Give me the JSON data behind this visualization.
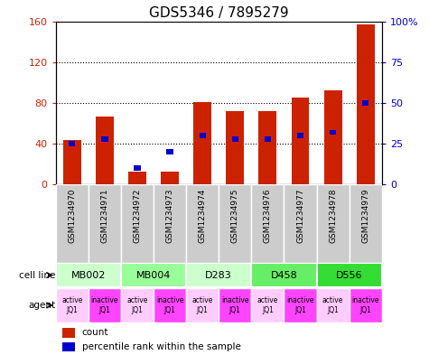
{
  "title": "GDS5346 / 7895279",
  "samples": [
    "GSM1234970",
    "GSM1234971",
    "GSM1234972",
    "GSM1234973",
    "GSM1234974",
    "GSM1234975",
    "GSM1234976",
    "GSM1234977",
    "GSM1234978",
    "GSM1234979"
  ],
  "count_values": [
    44,
    67,
    13,
    13,
    81,
    72,
    72,
    85,
    92,
    157
  ],
  "percentile_values": [
    25,
    28,
    10,
    20,
    30,
    28,
    28,
    30,
    32,
    50
  ],
  "ylim_left": [
    0,
    160
  ],
  "ylim_right": [
    0,
    100
  ],
  "yticks_left": [
    0,
    40,
    80,
    120,
    160
  ],
  "yticks_right": [
    0,
    25,
    50,
    75,
    100
  ],
  "ytick_labels_left": [
    "0",
    "40",
    "80",
    "120",
    "160"
  ],
  "ytick_labels_right": [
    "0",
    "25",
    "50",
    "75",
    "100%"
  ],
  "cell_lines": [
    {
      "label": "MB002",
      "cols": [
        0,
        1
      ],
      "color": "#ccffcc"
    },
    {
      "label": "MB004",
      "cols": [
        2,
        3
      ],
      "color": "#99ff99"
    },
    {
      "label": "D283",
      "cols": [
        4,
        5
      ],
      "color": "#ccffcc"
    },
    {
      "label": "D458",
      "cols": [
        6,
        7
      ],
      "color": "#66ee66"
    },
    {
      "label": "D556",
      "cols": [
        8,
        9
      ],
      "color": "#33dd33"
    }
  ],
  "agents": [
    "active\nJQ1",
    "inactive\nJQ1",
    "active\nJQ1",
    "inactive\nJQ1",
    "active\nJQ1",
    "inactive\nJQ1",
    "active\nJQ1",
    "inactive\nJQ1",
    "active\nJQ1",
    "inactive\nJQ1"
  ],
  "agent_bg_colors": [
    "#ffccff",
    "#ff44ff",
    "#ffccff",
    "#ff44ff",
    "#ffccff",
    "#ff44ff",
    "#ffccff",
    "#ff44ff",
    "#ffccff",
    "#ff44ff"
  ],
  "bar_color": "#cc2200",
  "pct_color": "#0000cc",
  "sample_box_color": "#cccccc",
  "grid_color": "#000000",
  "title_fontsize": 11,
  "bar_width": 0.55,
  "pct_bar_width": 0.2,
  "pct_bar_height": 5
}
